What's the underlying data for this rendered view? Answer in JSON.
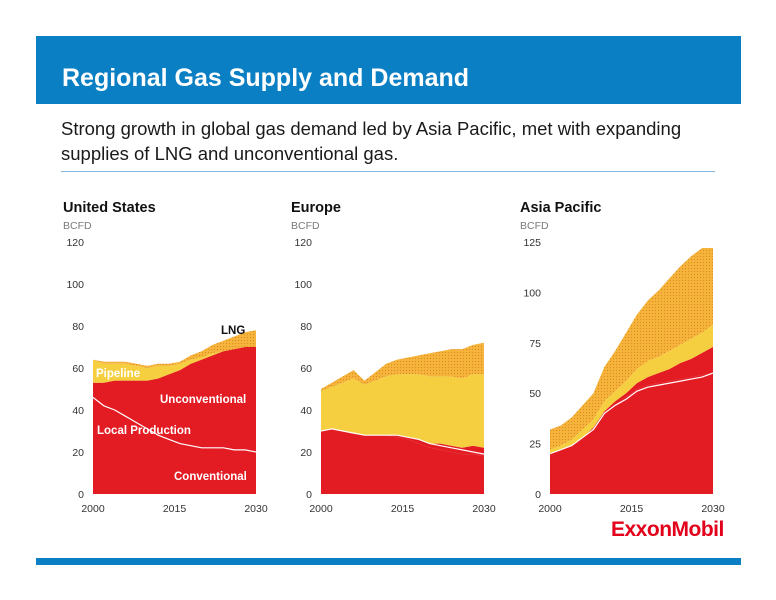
{
  "title": "Regional Gas Supply and Demand",
  "subtitle": "Strong growth in global gas demand led by Asia Pacific, met with expanding supplies of LNG and unconventional gas.",
  "logo": "ExxonMobil",
  "colors": {
    "banner": "#0a7fc4",
    "conventional": "#e31b23",
    "unconventional": "#e31b23",
    "pipeline": "#f5cf3f",
    "lng": "#f6b43c",
    "local_production_line": "#ffffff"
  },
  "chart_data": [
    {
      "type": "area",
      "title": "United States",
      "ylabel": "BCFD",
      "x": [
        2000,
        2002,
        2004,
        2006,
        2008,
        2010,
        2012,
        2014,
        2016,
        2018,
        2020,
        2022,
        2024,
        2026,
        2028,
        2030
      ],
      "xticks": [
        2000,
        2015,
        2030
      ],
      "yticks": [
        0,
        20,
        40,
        60,
        80,
        100,
        120
      ],
      "ylim": [
        0,
        120
      ],
      "series": [
        {
          "name": "Conventional",
          "values": [
            46,
            42,
            40,
            37,
            34,
            31,
            28,
            26,
            24,
            23,
            22,
            22,
            22,
            21,
            21,
            20
          ]
        },
        {
          "name": "Unconventional",
          "values": [
            7,
            11,
            14,
            17,
            20,
            23,
            27,
            31,
            35,
            39,
            42,
            44,
            46,
            48,
            49,
            50
          ]
        },
        {
          "name": "Pipeline",
          "values": [
            11,
            9,
            8,
            8,
            7,
            6,
            6,
            4,
            3,
            2,
            1,
            1,
            0,
            0,
            0,
            0
          ]
        },
        {
          "name": "LNG",
          "values": [
            0,
            1,
            1,
            1,
            1,
            1,
            1,
            1,
            1,
            2,
            3,
            4,
            5,
            6,
            7,
            8
          ]
        }
      ],
      "line": {
        "name": "Local Production",
        "values": [
          46,
          42,
          40,
          37,
          34,
          31,
          28,
          26,
          24,
          23,
          22,
          22,
          22,
          21,
          21,
          20
        ]
      }
    },
    {
      "type": "area",
      "title": "Europe",
      "ylabel": "BCFD",
      "x": [
        2000,
        2002,
        2004,
        2006,
        2008,
        2010,
        2012,
        2014,
        2016,
        2018,
        2020,
        2022,
        2024,
        2026,
        2028,
        2030
      ],
      "xticks": [
        2000,
        2015,
        2030
      ],
      "yticks": [
        0,
        20,
        40,
        60,
        80,
        100,
        120
      ],
      "ylim": [
        0,
        120
      ],
      "series": [
        {
          "name": "Conventional",
          "values": [
            30,
            31,
            30,
            29,
            28,
            28,
            28,
            27,
            26,
            24,
            22,
            21,
            20,
            19,
            19,
            18
          ]
        },
        {
          "name": "Unconventional",
          "values": [
            0,
            0,
            0,
            0,
            0,
            0,
            0,
            1,
            1,
            2,
            2,
            3,
            3,
            3,
            4,
            4
          ]
        },
        {
          "name": "Pipeline",
          "values": [
            19,
            20,
            23,
            26,
            24,
            26,
            28,
            29,
            30,
            31,
            32,
            32,
            33,
            33,
            34,
            35
          ]
        },
        {
          "name": "LNG",
          "values": [
            1,
            2,
            3,
            4,
            2,
            4,
            6,
            7,
            8,
            9,
            11,
            12,
            13,
            14,
            14,
            15
          ]
        }
      ],
      "line": {
        "name": "Local Production",
        "values": [
          30,
          31,
          30,
          29,
          28,
          28,
          28,
          28,
          27,
          26,
          24,
          23,
          22,
          21,
          20,
          19
        ]
      }
    },
    {
      "type": "area",
      "title": "Asia Pacific",
      "ylabel": "BCFD",
      "x": [
        2000,
        2002,
        2004,
        2006,
        2008,
        2010,
        2012,
        2014,
        2016,
        2018,
        2020,
        2022,
        2024,
        2026,
        2028,
        2030
      ],
      "xticks": [
        2000,
        2015,
        2030
      ],
      "yticks": [
        0,
        25,
        50,
        75,
        100,
        125
      ],
      "ylim": [
        0,
        125
      ],
      "series": [
        {
          "name": "Conventional",
          "values": [
            20,
            22,
            24,
            28,
            32,
            40,
            44,
            48,
            52,
            54,
            55,
            56,
            57,
            58,
            59,
            60
          ]
        },
        {
          "name": "Unconventional",
          "values": [
            0,
            0,
            0,
            0,
            1,
            1,
            2,
            2,
            3,
            4,
            5,
            6,
            8,
            9,
            11,
            13
          ]
        },
        {
          "name": "Pipeline",
          "values": [
            2,
            2,
            3,
            4,
            4,
            5,
            5,
            6,
            7,
            8,
            8,
            9,
            9,
            10,
            10,
            11
          ]
        },
        {
          "name": "LNG",
          "values": [
            10,
            10,
            11,
            12,
            13,
            17,
            20,
            24,
            27,
            30,
            33,
            36,
            39,
            41,
            42,
            38
          ]
        }
      ],
      "line": {
        "name": "Local Production",
        "values": [
          20,
          22,
          24,
          28,
          32,
          40,
          44,
          47,
          51,
          53,
          54,
          55,
          56,
          57,
          58,
          60
        ]
      }
    }
  ],
  "annotations": {
    "lng": "LNG",
    "pipeline": "Pipeline",
    "unconventional": "Unconventional",
    "local_production": "Local Production",
    "conventional": "Conventional"
  }
}
